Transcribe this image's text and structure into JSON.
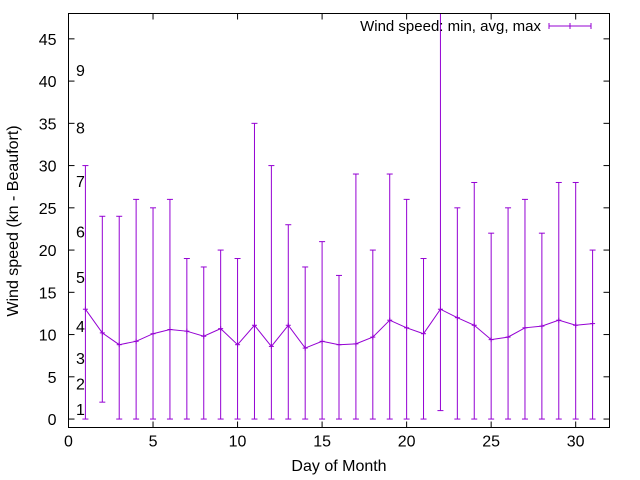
{
  "chart_data": {
    "type": "line",
    "title": "",
    "xlabel": "Day of Month",
    "ylabel": "Wind speed (kn - Beaufort)",
    "xlim": [
      0,
      32
    ],
    "ylim": [
      -1,
      48
    ],
    "x_ticks": [
      0,
      5,
      10,
      15,
      20,
      25,
      30
    ],
    "y_ticks": [
      0,
      5,
      10,
      15,
      20,
      25,
      30,
      35,
      40,
      45
    ],
    "grid": false,
    "legend_position": "top-right",
    "series": [
      {
        "name": "Wind speed: min, avg, max",
        "color": "#9400d3",
        "style": "errorbars-with-line",
        "x": [
          1,
          2,
          3,
          4,
          5,
          6,
          7,
          8,
          9,
          10,
          11,
          12,
          13,
          14,
          15,
          16,
          17,
          18,
          19,
          20,
          21,
          22,
          23,
          24,
          25,
          26,
          27,
          28,
          29,
          30,
          31
        ],
        "avg": [
          13,
          10.2,
          8.8,
          9.2,
          10.1,
          10.6,
          10.4,
          9.8,
          10.7,
          8.8,
          11.1,
          8.6,
          11.1,
          8.4,
          9.2,
          8.8,
          8.9,
          9.7,
          11.7,
          10.8,
          10.1,
          13,
          12,
          11.1,
          9.4,
          9.7,
          10.8,
          11,
          11.7,
          11.1,
          11.3
        ],
        "min": [
          0,
          2,
          0,
          0,
          0,
          0,
          0,
          0,
          0,
          0,
          0,
          0,
          0,
          0,
          0,
          0,
          0,
          0,
          0,
          0,
          0,
          1,
          0,
          0,
          0,
          0,
          0,
          0,
          0,
          0,
          0
        ],
        "max": [
          30,
          24,
          24,
          26,
          25,
          26,
          19,
          18,
          20,
          19,
          35,
          30,
          23,
          18,
          21,
          17,
          29,
          20,
          29,
          26,
          19,
          48,
          25,
          28,
          22,
          25,
          26,
          22,
          28,
          28,
          20
        ]
      }
    ],
    "beaufort_labels": [
      {
        "label": "1",
        "y": 1.2
      },
      {
        "label": "2",
        "y": 4.2
      },
      {
        "label": "3",
        "y": 7.2
      },
      {
        "label": "4",
        "y": 11
      },
      {
        "label": "5",
        "y": 16.8
      },
      {
        "label": "6",
        "y": 22.2
      },
      {
        "label": "7",
        "y": 28.2
      },
      {
        "label": "8",
        "y": 34.5
      },
      {
        "label": "9",
        "y": 41.3
      }
    ]
  }
}
